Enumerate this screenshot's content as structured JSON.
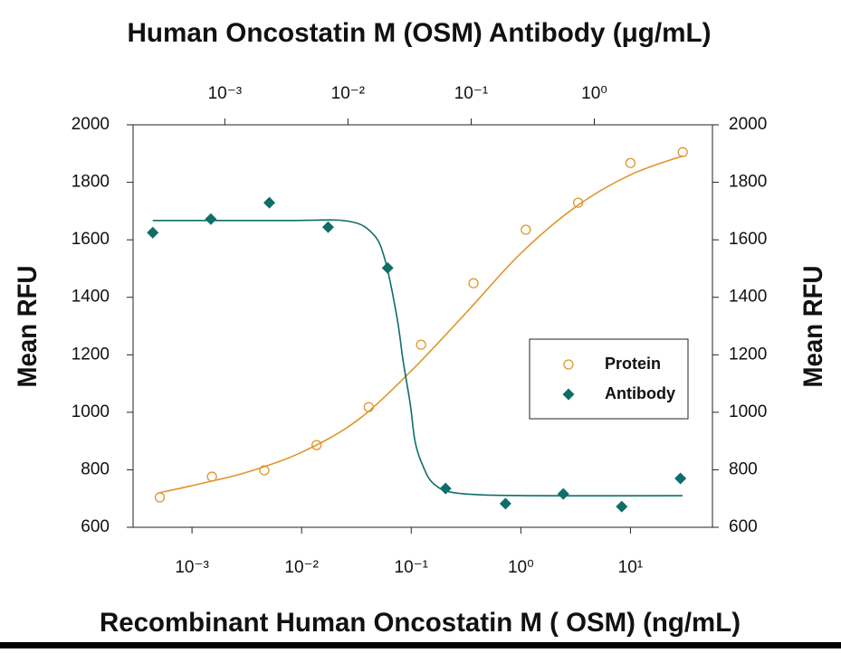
{
  "chart_data": {
    "type": "scatter",
    "x2_label": "Human Oncostatin M (OSM) Antibody (μg/mL)",
    "x_label": "Recombinant Human Oncostatin M ( OSM) (ng/mL)",
    "y_label": "Mean RFU",
    "y2_label": "Mean RFU",
    "xscale": "log",
    "x2scale": "log",
    "xlim": [
      0.00029,
      56
    ],
    "x2lim": [
      0.00018,
      9.1
    ],
    "xticks": [
      {
        "value": 0.001,
        "label": "10⁻³"
      },
      {
        "value": 0.01,
        "label": "10⁻²"
      },
      {
        "value": 0.1,
        "label": "10⁻¹"
      },
      {
        "value": 1,
        "label": "10⁰"
      },
      {
        "value": 10,
        "label": "10¹"
      }
    ],
    "x2ticks": [
      {
        "value": 0.001,
        "label": "10⁻³"
      },
      {
        "value": 0.01,
        "label": "10⁻²"
      },
      {
        "value": 0.1,
        "label": "10⁻¹"
      },
      {
        "value": 1,
        "label": "10⁰"
      }
    ],
    "ylim": [
      600,
      2000
    ],
    "yticks": [
      600,
      800,
      1000,
      1200,
      1400,
      1600,
      1800,
      2000
    ],
    "y2lim": [
      600,
      2000
    ],
    "y2ticks": [
      600,
      800,
      1000,
      1200,
      1400,
      1600,
      1800,
      2000
    ],
    "legend": "right",
    "series": [
      {
        "name": "Protein",
        "color": "#e0952a",
        "marker": "circle",
        "xaxis": "x",
        "x": [
          0.000508,
          0.00152,
          0.00457,
          0.0137,
          0.041,
          0.123,
          0.37,
          1.11,
          3.33,
          10,
          30
        ],
        "values": [
          704,
          776,
          798,
          886,
          1018,
          1235,
          1449,
          1635,
          1729,
          1867,
          1905
        ],
        "fit": {
          "x": [
            0.0005,
            0.001,
            0.0032,
            0.01,
            0.032,
            0.1,
            0.32,
            1,
            3.2,
            10,
            30
          ],
          "values": [
            720,
            745,
            792,
            861,
            971,
            1144,
            1348,
            1553,
            1716,
            1826,
            1892
          ]
        }
      },
      {
        "name": "Antibody",
        "color": "#0e6e6a",
        "marker": "diamond",
        "xaxis": "x2",
        "x": [
          0.00026,
          0.00077,
          0.0023,
          0.0069,
          0.021,
          0.062,
          0.19,
          0.56,
          1.67,
          5
        ],
        "values": [
          1625,
          1672,
          1729,
          1644,
          1502,
          735,
          682,
          716,
          672,
          770
        ],
        "fit": {
          "x": [
            0.00026,
            0.0032,
            0.01,
            0.016,
            0.02,
            0.025,
            0.028,
            0.032,
            0.035,
            0.04,
            0.05,
            0.08,
            0.32,
            5.2
          ],
          "values": [
            1667,
            1667,
            1665,
            1620,
            1530,
            1330,
            1180,
            1030,
            900,
            820,
            750,
            718,
            710,
            710
          ]
        }
      }
    ]
  }
}
